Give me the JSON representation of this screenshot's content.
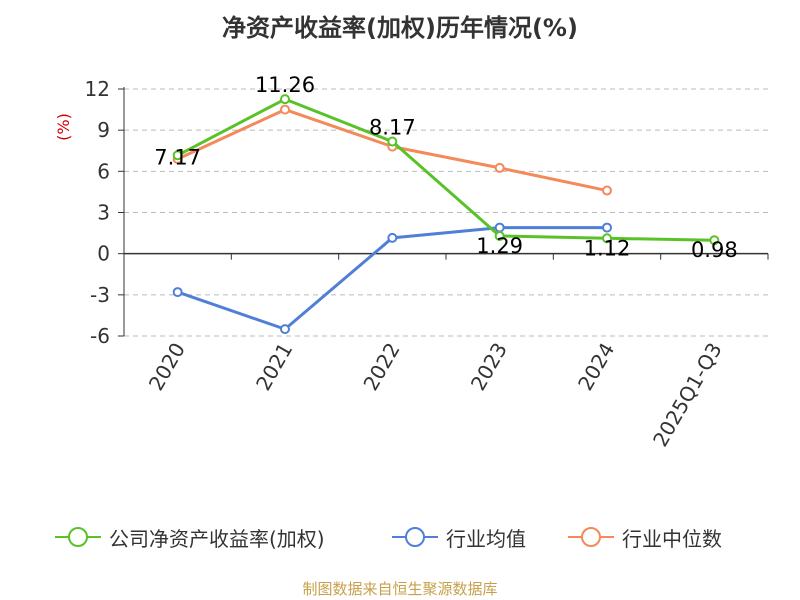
{
  "chart_data": {
    "type": "line",
    "title": "净资产收益率(加权)历年情况(%)",
    "ylabel": "(%)",
    "xlabel": "",
    "ylim": [
      -6,
      12
    ],
    "yticks": [
      12,
      9,
      6,
      3,
      0,
      -3,
      -6
    ],
    "grid": true,
    "legend_position": "bottom",
    "categories": [
      "2020",
      "2021",
      "2022",
      "2023",
      "2024",
      "2025Q1-Q3"
    ],
    "series": [
      {
        "name": "公司净资产收益率(加权)",
        "color": "#5ac229",
        "values": [
          7.17,
          11.26,
          8.17,
          1.29,
          1.12,
          0.98
        ],
        "labels": [
          "7.17",
          "11.26",
          "8.17",
          "1.29",
          "1.12",
          "0.98"
        ]
      },
      {
        "name": "行业均值",
        "color": "#4f7fd6",
        "values": [
          -2.8,
          -5.5,
          1.15,
          1.9,
          1.9,
          null
        ]
      },
      {
        "name": "行业中位数",
        "color": "#f4895a",
        "values": [
          6.9,
          10.5,
          7.8,
          6.25,
          4.6,
          null
        ]
      }
    ]
  },
  "footer": "制图数据来自恒生聚源数据库"
}
